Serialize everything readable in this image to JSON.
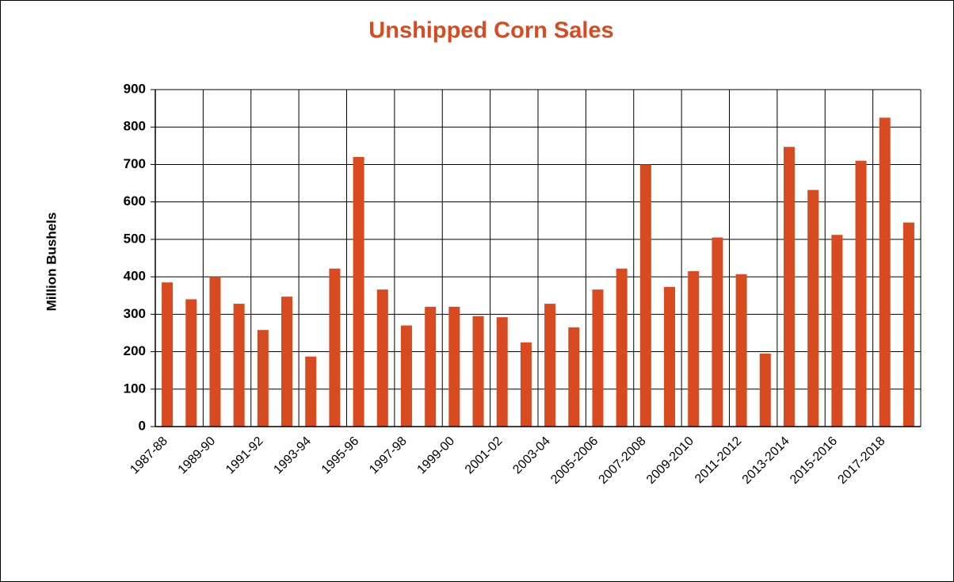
{
  "chart_data": {
    "type": "bar",
    "title": "Unshipped Corn Sales",
    "y_label": "Million Bushels",
    "categories": [
      "1987-88",
      null,
      "1989-90",
      null,
      "1991-92",
      null,
      "1993-94",
      null,
      "1995-96",
      null,
      "1997-98",
      null,
      "1999-00",
      null,
      "2001-02",
      null,
      "2003-04",
      null,
      "2005-2006",
      null,
      "2007-2008",
      null,
      "2009-2010",
      null,
      "2011-2012",
      null,
      "2013-2014",
      null,
      "2015-2016",
      null,
      "2017-2018",
      null
    ],
    "values": [
      385,
      340,
      400,
      328,
      258,
      347,
      187,
      422,
      720,
      366,
      270,
      320,
      320,
      295,
      292,
      225,
      328,
      265,
      366,
      422,
      700,
      373,
      415,
      505,
      407,
      195,
      747,
      632,
      512,
      710,
      825,
      545
    ],
    "color": "#d84a1f",
    "ylim": [
      0,
      900
    ],
    "yticks": [
      0,
      100,
      200,
      300,
      400,
      500,
      600,
      700,
      800,
      900
    ],
    "grid": true
  }
}
